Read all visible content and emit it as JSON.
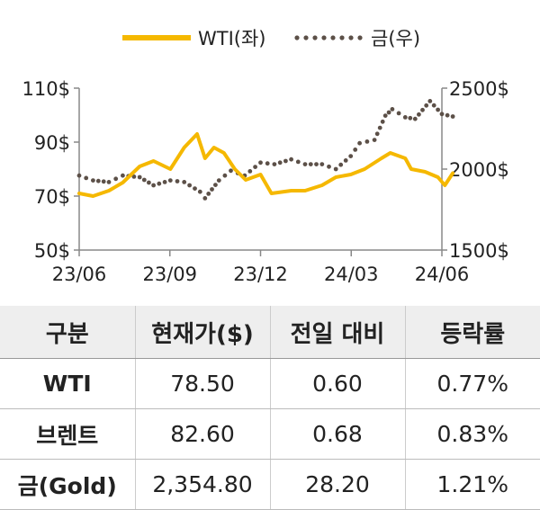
{
  "chart_data": {
    "type": "line",
    "legend": {
      "placement": "top-center",
      "items": [
        {
          "label": "WTI(좌)",
          "style": "solid",
          "color": "#F5B800"
        },
        {
          "label": "금(우)",
          "style": "dotted",
          "color": "#5C5048"
        }
      ]
    },
    "x_ticks": [
      "23/06",
      "23/09",
      "23/12",
      "24/03",
      "24/06"
    ],
    "y_left": {
      "ticks": [
        "110$",
        "90$",
        "70$",
        "50$"
      ],
      "min": 50,
      "max": 110
    },
    "y_right": {
      "ticks": [
        "2500$",
        "2000$",
        "1500$"
      ],
      "min": 1500,
      "max": 2500
    },
    "grid": false,
    "series": [
      {
        "name": "WTI(좌)",
        "axis": "left",
        "color": "#F5B800",
        "x": [
          "2023-06-01",
          "2023-06-15",
          "2023-07-01",
          "2023-07-15",
          "2023-08-01",
          "2023-08-15",
          "2023-09-01",
          "2023-09-15",
          "2023-09-28",
          "2023-10-06",
          "2023-10-15",
          "2023-10-25",
          "2023-11-05",
          "2023-11-16",
          "2023-12-01",
          "2023-12-12",
          "2024-01-01",
          "2024-01-15",
          "2024-02-01",
          "2024-02-15",
          "2024-03-01",
          "2024-03-15",
          "2024-04-01",
          "2024-04-10",
          "2024-04-25",
          "2024-05-01",
          "2024-05-15",
          "2024-05-28",
          "2024-06-04",
          "2024-06-12"
        ],
        "y": [
          71,
          70,
          72,
          75,
          81,
          83,
          80,
          88,
          93,
          84,
          88,
          86,
          80,
          76,
          78,
          71,
          72,
          72,
          74,
          77,
          78,
          80,
          84,
          86,
          84,
          80,
          79,
          77,
          74,
          78.5
        ]
      },
      {
        "name": "금(우)",
        "axis": "right",
        "color": "#5C5048",
        "x": [
          "2023-06-01",
          "2023-06-15",
          "2023-07-01",
          "2023-07-15",
          "2023-08-01",
          "2023-08-15",
          "2023-09-01",
          "2023-09-15",
          "2023-10-01",
          "2023-10-06",
          "2023-10-20",
          "2023-11-01",
          "2023-11-15",
          "2023-12-01",
          "2023-12-15",
          "2024-01-01",
          "2024-01-15",
          "2024-02-01",
          "2024-02-15",
          "2024-03-01",
          "2024-03-10",
          "2024-03-25",
          "2024-04-05",
          "2024-04-12",
          "2024-04-25",
          "2024-05-05",
          "2024-05-20",
          "2024-06-01",
          "2024-06-12"
        ],
        "y": [
          1960,
          1930,
          1920,
          1960,
          1950,
          1900,
          1930,
          1920,
          1860,
          1820,
          1930,
          1990,
          1960,
          2040,
          2030,
          2060,
          2030,
          2030,
          2000,
          2080,
          2160,
          2180,
          2330,
          2370,
          2320,
          2310,
          2420,
          2340,
          2325
        ]
      }
    ]
  },
  "table": {
    "headers": [
      "구분",
      "현재가($)",
      "전일 대비",
      "등락률"
    ],
    "rows": [
      [
        "WTI",
        "78.50",
        "0.60",
        "0.77%"
      ],
      [
        "브렌트",
        "82.60",
        "0.68",
        "0.83%"
      ],
      [
        "금(Gold)",
        "2,354.80",
        "28.20",
        "1.21%"
      ]
    ]
  }
}
